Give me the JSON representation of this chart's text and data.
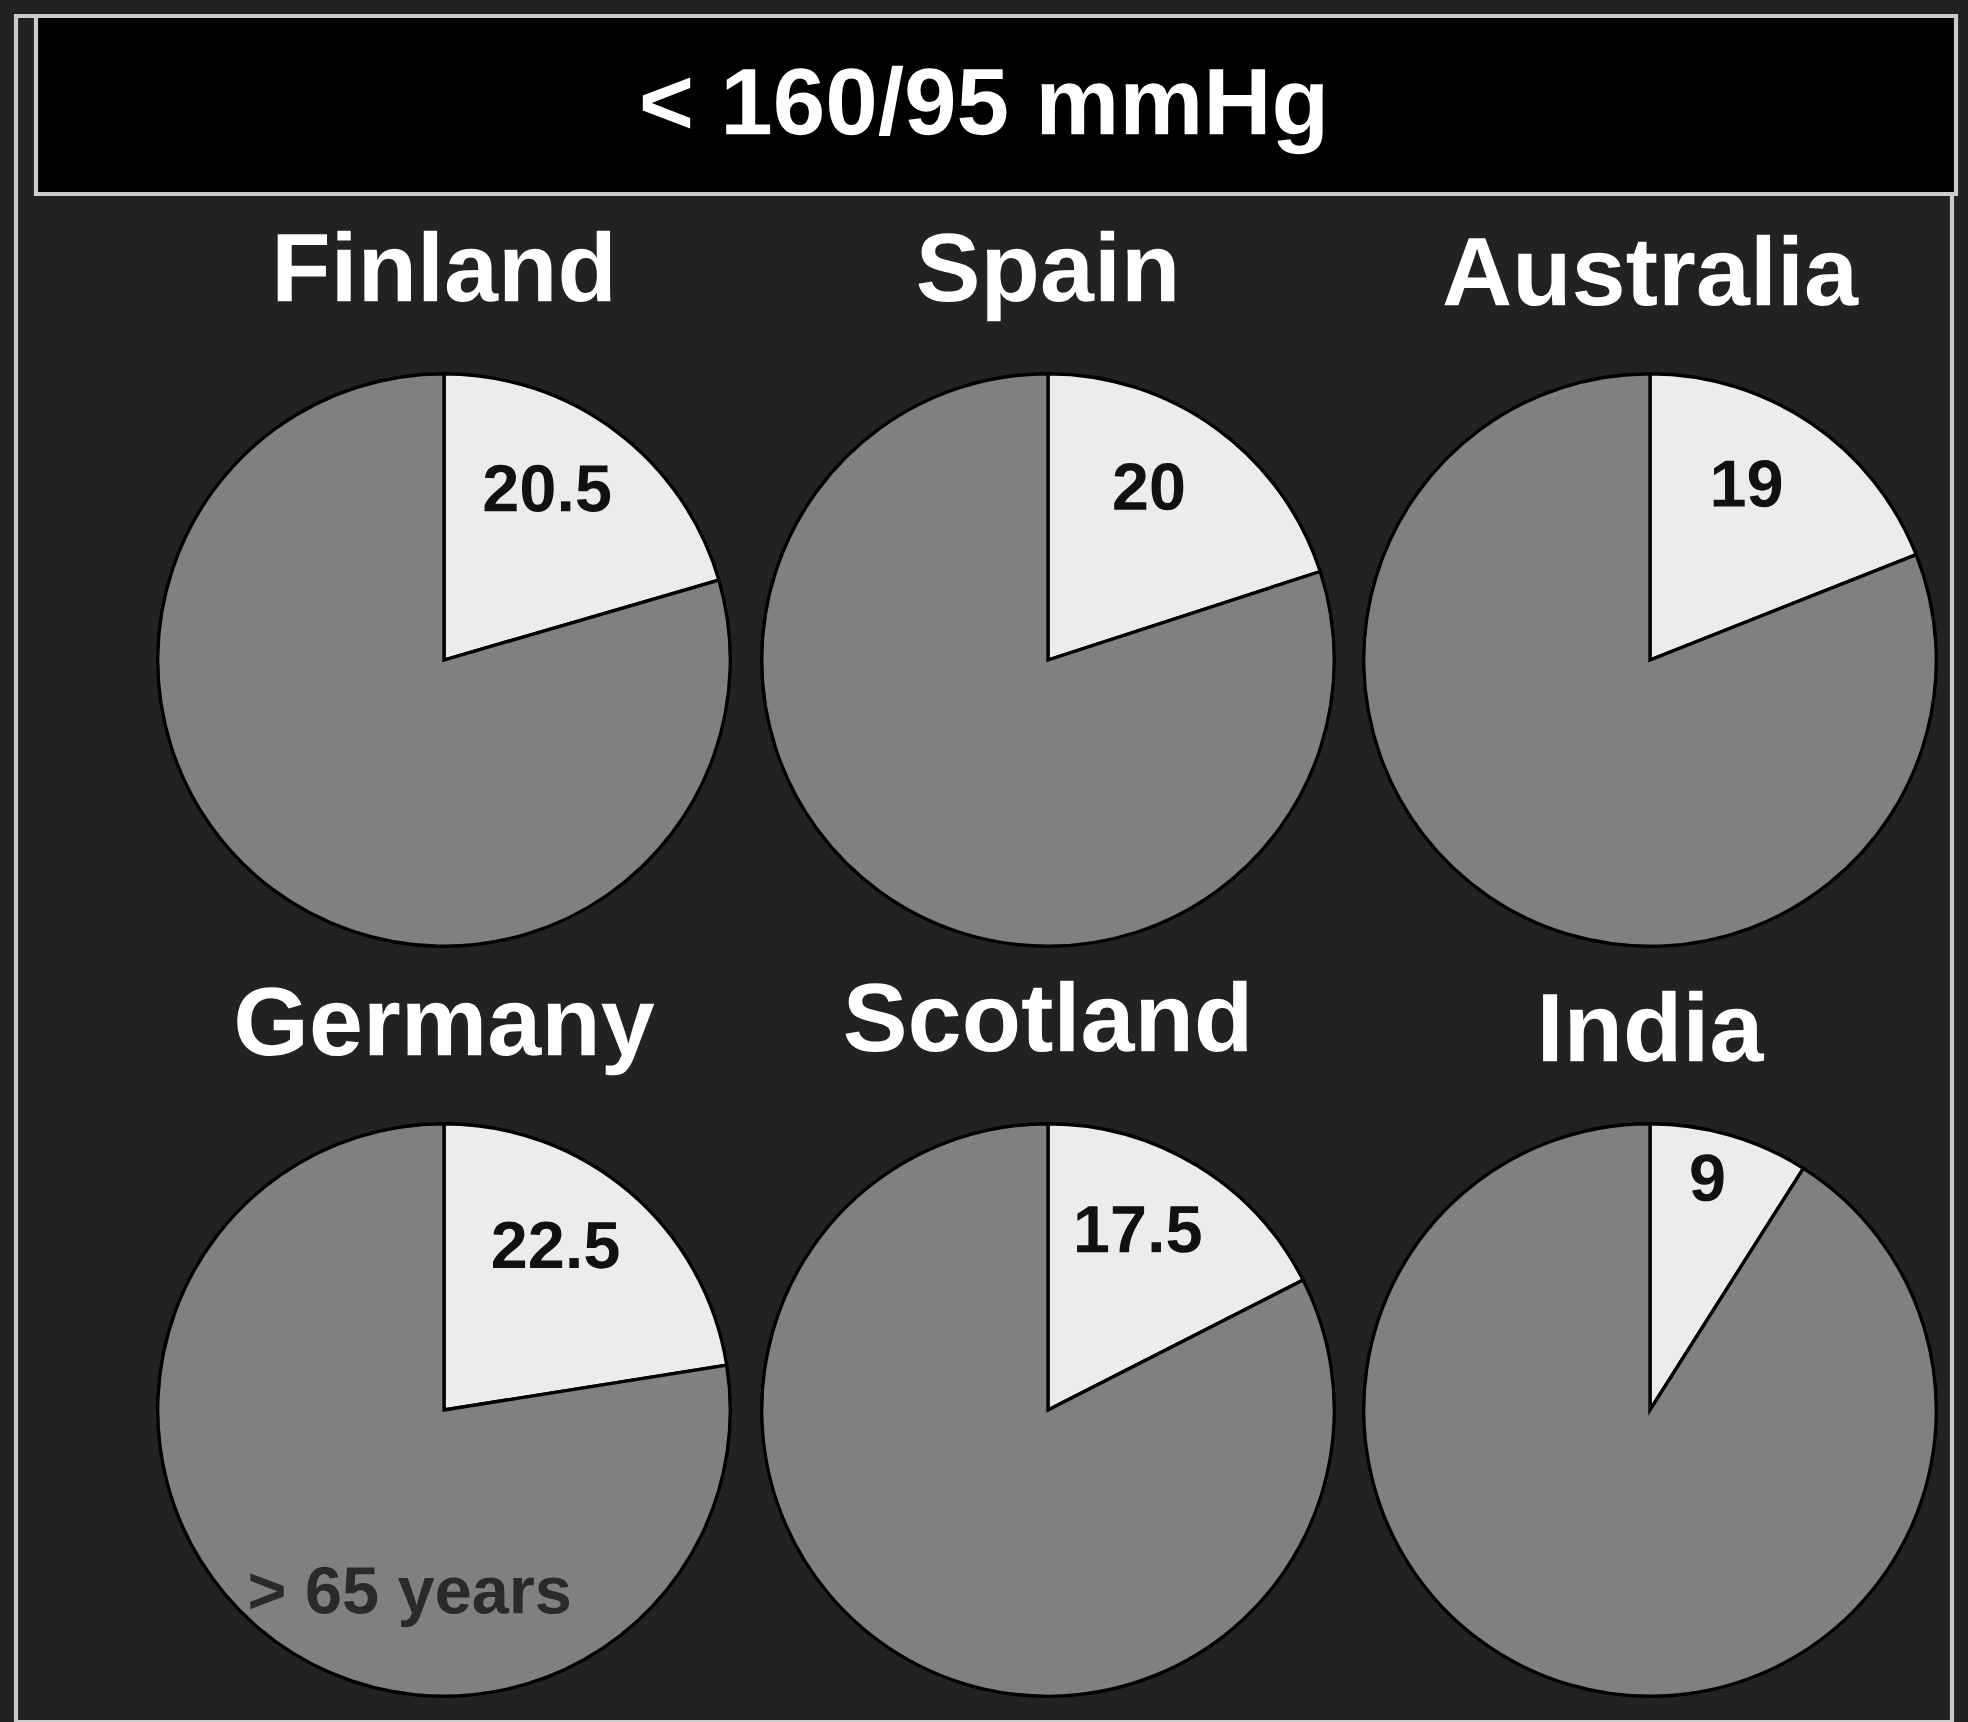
{
  "chart_data": [
    {
      "type": "pie",
      "title": "Finland",
      "annotations": [
        "< 160/95 mmHg"
      ],
      "categories": [
        null,
        null
      ],
      "values": [
        20.5,
        79.5
      ],
      "value_labels": [
        "20.5",
        null
      ],
      "colors": [
        "#ececec",
        "#808080"
      ]
    },
    {
      "type": "pie",
      "title": "Spain",
      "categories": [
        null,
        null
      ],
      "values": [
        20,
        80
      ],
      "value_labels": [
        "20",
        null
      ],
      "colors": [
        "#ececec",
        "#808080"
      ]
    },
    {
      "type": "pie",
      "title": "Australia",
      "categories": [
        null,
        null
      ],
      "values": [
        19,
        81
      ],
      "value_labels": [
        "19",
        null
      ],
      "colors": [
        "#ececec",
        "#808080"
      ]
    },
    {
      "type": "pie",
      "title": "Germany",
      "annotations": [
        "> 65 years"
      ],
      "categories": [
        null,
        null
      ],
      "values": [
        22.5,
        77.5
      ],
      "value_labels": [
        "22.5",
        null
      ],
      "colors": [
        "#ececec",
        "#808080"
      ]
    },
    {
      "type": "pie",
      "title": "Scotland",
      "categories": [
        null,
        null
      ],
      "values": [
        17.5,
        82.5
      ],
      "value_labels": [
        "17.5",
        null
      ],
      "colors": [
        "#ececec",
        "#808080"
      ]
    },
    {
      "type": "pie",
      "title": "India",
      "categories": [
        null,
        null
      ],
      "values": [
        9,
        91
      ],
      "value_labels": [
        "9",
        null
      ],
      "colors": [
        "#ececec",
        "#808080"
      ]
    }
  ]
}
